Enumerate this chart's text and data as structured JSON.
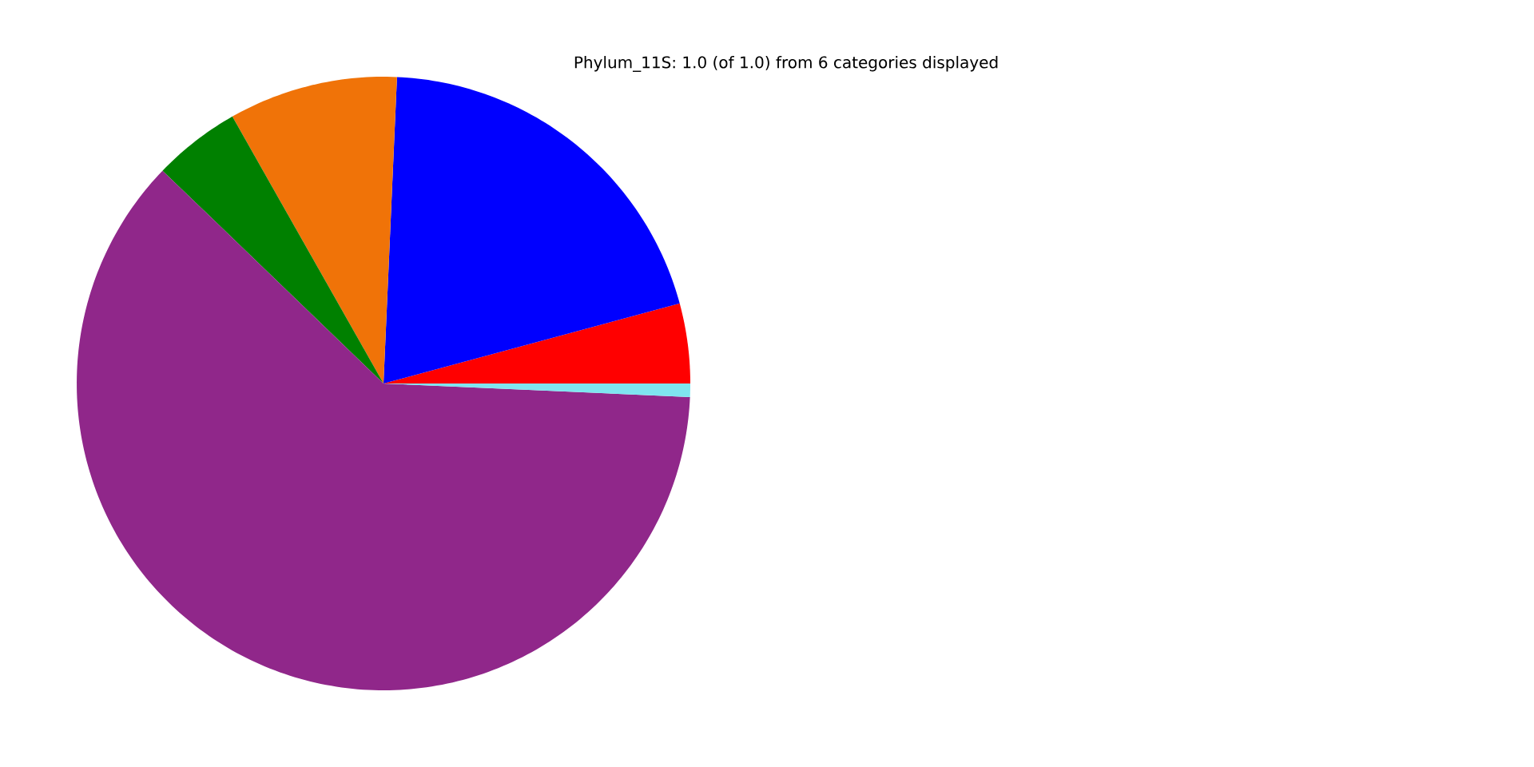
{
  "chart_data": {
    "type": "pie",
    "title": "Phylum_11S: 1.0 (of 1.0) from 6 categories displayed",
    "categories": [
      null,
      null,
      null,
      null,
      null,
      null
    ],
    "values": [
      4.2,
      20.1,
      8.9,
      4.6,
      61.5,
      0.7
    ],
    "colors": [
      "#ff0000",
      "#0000ff",
      "#f07308",
      "#008000",
      "#90278a",
      "#7fe5f0"
    ]
  }
}
